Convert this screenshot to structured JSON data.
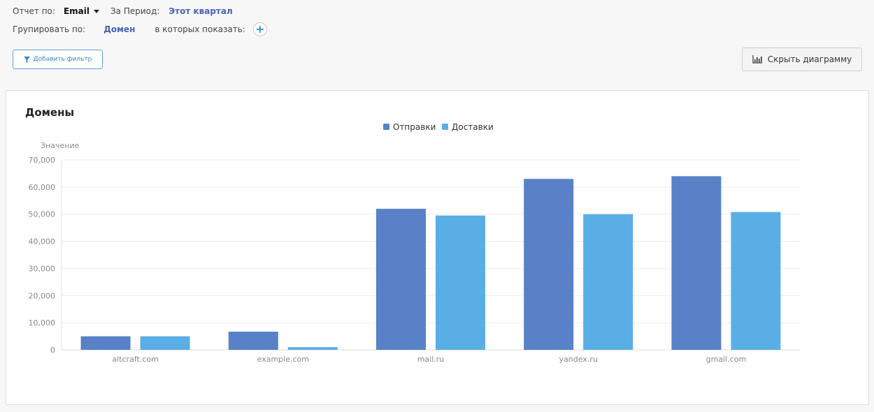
{
  "filters": {
    "report_by_label": "Отчет по:",
    "report_by_value": "Email",
    "period_label": "За Период:",
    "period_value": "Этот квартал",
    "group_by_label": "Групировать по:",
    "group_by_value": "Домен",
    "show_in_label": "в которых показать:",
    "add_symbol": "+"
  },
  "toolbar": {
    "add_filter_label": "Добавить фильтр",
    "hide_chart_label": "Скрыть диаграмму"
  },
  "colors": {
    "series_sent": "#5881c8",
    "series_delivered": "#5aaee6"
  },
  "chart_data": {
    "type": "bar",
    "title": "Домены",
    "xlabel": "",
    "ylabel": "Значение",
    "ylim": [
      0,
      70000
    ],
    "yticks": [
      "0",
      "10,000",
      "20,000",
      "30,000",
      "40,000",
      "50,000",
      "60,000",
      "70,000"
    ],
    "categories": [
      "altcraft.com",
      "example.com",
      "mail.ru",
      "yandex.ru",
      "gmail.com"
    ],
    "series": [
      {
        "name": "Отправки",
        "values": [
          5000,
          6700,
          52000,
          63000,
          64000
        ]
      },
      {
        "name": "Доставки",
        "values": [
          5000,
          1000,
          49500,
          50000,
          50800
        ]
      }
    ],
    "legend": "top-center",
    "grid": true
  }
}
